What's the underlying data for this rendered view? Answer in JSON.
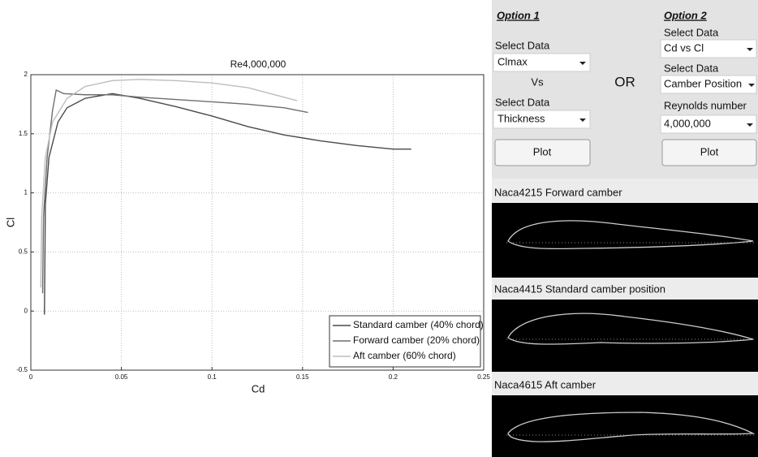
{
  "chart_data": {
    "type": "line",
    "title": "Re4,000,000",
    "x_label": "Cd",
    "y_label": "Cl",
    "xlim": [
      0,
      0.25
    ],
    "xticks": [
      0,
      0.05,
      0.1,
      0.15,
      0.2,
      0.25
    ],
    "ylim": [
      -0.5,
      2
    ],
    "yticks": [
      -0.5,
      0,
      0.5,
      1,
      1.5,
      2
    ],
    "grid": true,
    "legend": "lower right",
    "series": [
      {
        "name": "Standard camber (40% chord)",
        "color": "#4a4a4a",
        "x": [
          0.0075,
          0.0078,
          0.008,
          0.01,
          0.015,
          0.02,
          0.03,
          0.045,
          0.06,
          0.08,
          0.1,
          0.12,
          0.14,
          0.16,
          0.18,
          0.2,
          0.21
        ],
        "values": [
          -0.03,
          0.5,
          0.9,
          1.3,
          1.6,
          1.72,
          1.8,
          1.84,
          1.8,
          1.73,
          1.65,
          1.56,
          1.49,
          1.44,
          1.4,
          1.37,
          1.37
        ]
      },
      {
        "name": "Forward camber (20% chord)",
        "color": "#6e6e6e",
        "x": [
          0.0065,
          0.007,
          0.009,
          0.012,
          0.014,
          0.018,
          0.03,
          0.045,
          0.06,
          0.08,
          0.1,
          0.12,
          0.14,
          0.153
        ],
        "values": [
          0.15,
          0.8,
          1.3,
          1.7,
          1.87,
          1.84,
          1.83,
          1.83,
          1.81,
          1.79,
          1.77,
          1.75,
          1.72,
          1.68
        ]
      },
      {
        "name": "Aft camber (60% chord)",
        "color": "#bdbdbd",
        "x": [
          0.0055,
          0.006,
          0.008,
          0.012,
          0.02,
          0.03,
          0.045,
          0.06,
          0.08,
          0.1,
          0.12,
          0.147
        ],
        "values": [
          0.2,
          0.8,
          1.3,
          1.6,
          1.8,
          1.9,
          1.95,
          1.96,
          1.95,
          1.93,
          1.89,
          1.78
        ]
      }
    ]
  },
  "controls": {
    "option1": {
      "title": "Option 1",
      "select_label_1": "Select Data",
      "select_1": "Clmax",
      "vs": "Vs",
      "select_label_2": "Select Data",
      "select_2": "Thickness",
      "button": "Plot"
    },
    "or": "OR",
    "option2": {
      "title": "Option 2",
      "select_label_1": "Select Data",
      "select_1": "Cd vs Cl",
      "select_label_2": "Select Data",
      "select_2": "Camber Position",
      "reynolds_label": "Reynolds number",
      "reynolds": "4,000,000",
      "button": "Plot"
    }
  },
  "previews": [
    {
      "label": "Naca4215 Forward camber"
    },
    {
      "label": "Naca4415 Standard camber position"
    },
    {
      "label": "Naca4615 Aft camber"
    }
  ]
}
